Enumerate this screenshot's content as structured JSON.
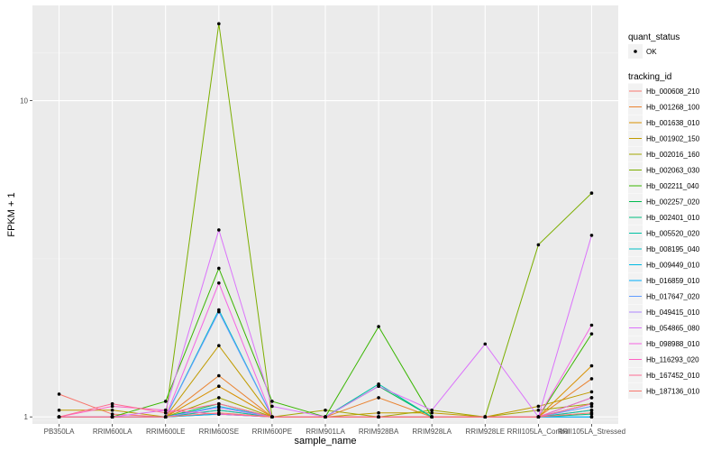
{
  "chart_data": {
    "type": "line",
    "xlabel": "sample_name",
    "ylabel": "FPKM + 1",
    "y_scale": "log10",
    "ylim": [
      0.95,
      20
    ],
    "y_ticks": [
      1,
      10
    ],
    "y_tick_labels": [
      "1",
      "10"
    ],
    "grid": true,
    "legend_position": "right",
    "categories": [
      "PB350LA",
      "RRIM600LA",
      "RRIM600LE",
      "RRIM600SE",
      "RRIM600PE",
      "RRIM901LA",
      "RRIM928BA",
      "RRIM928LA",
      "RRIM928LE",
      "RRII105LA_Control",
      "RRII105LA_Stressed"
    ],
    "point_legend": {
      "title": "quant_status",
      "entries": [
        "OK"
      ]
    },
    "line_legend_title": "tracking_id",
    "series": [
      {
        "name": "Hb_000608_210",
        "color": "#F8766D",
        "values": [
          1.18,
          1.02,
          1.0,
          1.05,
          1.0,
          1.0,
          1.0,
          1.0,
          1.0,
          1.0,
          1.05
        ]
      },
      {
        "name": "Hb_001268_100",
        "color": "#EA8331",
        "values": [
          1.0,
          1.0,
          1.0,
          1.35,
          1.0,
          1.0,
          1.15,
          1.0,
          1.0,
          1.0,
          1.32
        ]
      },
      {
        "name": "Hb_001638_010",
        "color": "#D89000",
        "values": [
          1.0,
          1.0,
          1.0,
          1.25,
          1.0,
          1.0,
          1.0,
          1.0,
          1.0,
          1.0,
          1.45
        ]
      },
      {
        "name": "Hb_001902_150",
        "color": "#C09B00",
        "values": [
          1.05,
          1.05,
          1.0,
          1.68,
          1.0,
          1.0,
          1.03,
          1.03,
          1.0,
          1.08,
          1.2
        ]
      },
      {
        "name": "Hb_002016_160",
        "color": "#A3A500",
        "values": [
          1.0,
          1.0,
          1.0,
          1.15,
          1.0,
          1.05,
          1.0,
          1.05,
          1.0,
          1.05,
          1.1
        ]
      },
      {
        "name": "Hb_002063_030",
        "color": "#7CAE00",
        "values": [
          1.0,
          1.0,
          1.0,
          17.5,
          1.0,
          1.0,
          1.0,
          1.0,
          1.0,
          3.5,
          5.1
        ]
      },
      {
        "name": "Hb_002211_040",
        "color": "#39B600",
        "values": [
          1.0,
          1.0,
          1.12,
          2.95,
          1.12,
          1.0,
          1.93,
          1.0,
          1.0,
          1.0,
          1.83
        ]
      },
      {
        "name": "Hb_002257_020",
        "color": "#00BB4E",
        "values": [
          1.0,
          1.0,
          1.0,
          1.1,
          1.0,
          1.0,
          1.25,
          1.0,
          1.0,
          1.0,
          1.1
        ]
      },
      {
        "name": "Hb_002401_010",
        "color": "#00BF7D",
        "values": [
          1.0,
          1.0,
          1.0,
          1.02,
          1.0,
          1.0,
          1.0,
          1.0,
          1.0,
          1.0,
          1.02
        ]
      },
      {
        "name": "Hb_005520_020",
        "color": "#00C1A3",
        "values": [
          1.0,
          1.0,
          1.0,
          1.05,
          1.0,
          1.0,
          1.27,
          1.0,
          1.0,
          1.0,
          1.05
        ]
      },
      {
        "name": "Hb_008195_040",
        "color": "#00BFC4",
        "values": [
          1.0,
          1.0,
          1.0,
          2.18,
          1.0,
          1.0,
          1.0,
          1.0,
          1.0,
          1.0,
          1.15
        ]
      },
      {
        "name": "Hb_009449_010",
        "color": "#00B9E3",
        "values": [
          1.0,
          1.0,
          1.0,
          1.08,
          1.0,
          1.0,
          1.0,
          1.0,
          1.0,
          1.0,
          1.0
        ]
      },
      {
        "name": "Hb_016859_010",
        "color": "#00ADFA",
        "values": [
          1.0,
          1.0,
          1.0,
          1.02,
          1.0,
          1.0,
          1.0,
          1.0,
          1.0,
          1.0,
          1.0
        ]
      },
      {
        "name": "Hb_017647_020",
        "color": "#619CFF",
        "values": [
          1.0,
          1.0,
          1.0,
          2.15,
          1.0,
          1.0,
          1.0,
          1.0,
          1.0,
          1.0,
          1.08
        ]
      },
      {
        "name": "Hb_049415_010",
        "color": "#AE87FF",
        "values": [
          1.0,
          1.0,
          1.0,
          1.07,
          1.0,
          1.0,
          1.0,
          1.0,
          1.0,
          1.0,
          1.1
        ]
      },
      {
        "name": "Hb_054865_080",
        "color": "#DB72FB",
        "values": [
          1.0,
          1.0,
          1.05,
          3.9,
          1.08,
          1.0,
          1.25,
          1.05,
          1.7,
          1.0,
          3.75
        ]
      },
      {
        "name": "Hb_098988_010",
        "color": "#F564E3",
        "values": [
          1.0,
          1.0,
          1.0,
          2.65,
          1.0,
          1.0,
          1.0,
          1.0,
          1.0,
          1.0,
          1.95
        ]
      },
      {
        "name": "Hb_116293_020",
        "color": "#FF61C3",
        "values": [
          1.0,
          1.08,
          1.05,
          1.02,
          1.0,
          1.0,
          1.0,
          1.0,
          1.0,
          1.0,
          1.15
        ]
      },
      {
        "name": "Hb_167452_010",
        "color": "#FF6C91",
        "values": [
          1.0,
          1.1,
          1.03,
          1.1,
          1.0,
          1.0,
          1.0,
          1.0,
          1.0,
          1.0,
          1.1
        ]
      },
      {
        "name": "Hb_187136_010",
        "color": "#F8766D",
        "values": [
          1.0,
          1.0,
          1.0,
          1.03,
          1.0,
          1.0,
          1.0,
          1.0,
          1.0,
          1.0,
          1.03
        ]
      }
    ]
  }
}
